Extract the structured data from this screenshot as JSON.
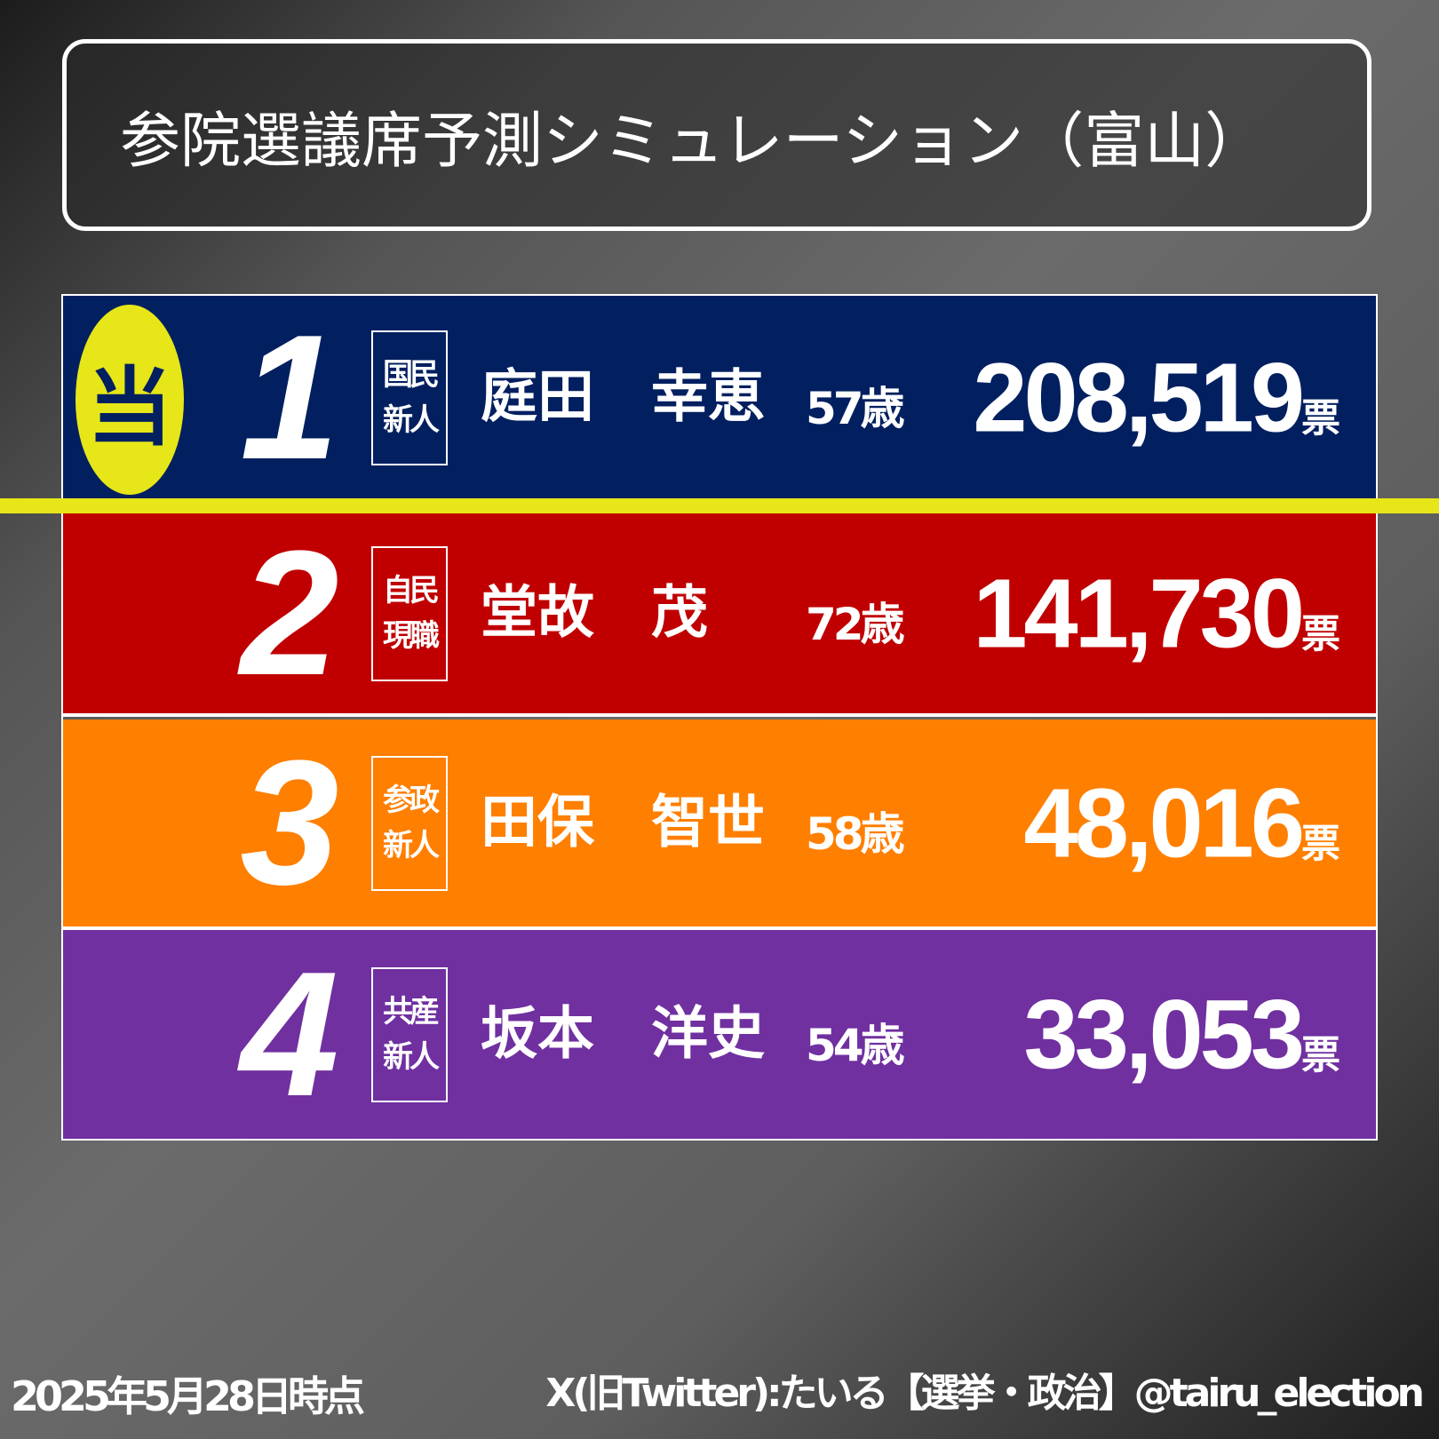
{
  "title": "参院選議席予測シミュレーション（富山）",
  "winner_badge": "当",
  "colors": {
    "yellow": "#e6e619"
  },
  "candidates": [
    {
      "rank": "1",
      "party": "国民",
      "status": "新人",
      "name": "庭田　幸恵",
      "age": "57歳",
      "votes": "208,519",
      "unit": "票",
      "color": "#022060",
      "elected": true
    },
    {
      "rank": "2",
      "party": "自民",
      "status": "現職",
      "name": "堂故　茂",
      "age": "72歳",
      "votes": "141,730",
      "unit": "票",
      "color": "#c00000",
      "elected": false
    },
    {
      "rank": "3",
      "party": "参政",
      "status": "新人",
      "name": "田保　智世",
      "age": "58歳",
      "votes": "48,016",
      "unit": "票",
      "color": "#ff7f00",
      "elected": false
    },
    {
      "rank": "4",
      "party": "共産",
      "status": "新人",
      "name": "坂本　洋史",
      "age": "54歳",
      "votes": "33,053",
      "unit": "票",
      "color": "#7030a0",
      "elected": false
    }
  ],
  "footer": {
    "date": "2025年5月28日時点",
    "credit": "X(旧Twitter):たいる【選挙・政治】@tairu_election"
  }
}
